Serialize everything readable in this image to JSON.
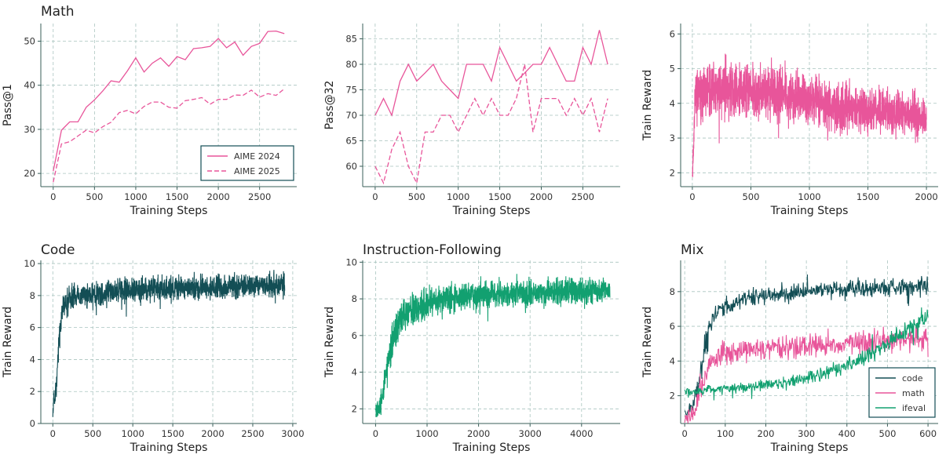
{
  "colors": {
    "pink": "#e8559a",
    "dark_teal": "#134e55",
    "green": "#12a070",
    "grid": "#a9c4bf",
    "axis": "#3a5f5a"
  },
  "chart_data": [
    {
      "type": "line",
      "title": "Math",
      "xlabel": "Training Steps",
      "ylabel": "Pass@1",
      "xlim": [
        -150,
        2950
      ],
      "ylim": [
        17,
        54
      ],
      "xticks": [
        0,
        500,
        1000,
        1500,
        2000,
        2500
      ],
      "yticks": [
        20,
        30,
        40,
        50
      ],
      "legend_position": "lower-right",
      "series": [
        {
          "name": "AIME 2024",
          "style": "solid",
          "color": "#e8559a",
          "x": [
            0,
            100,
            200,
            300,
            400,
            500,
            600,
            700,
            800,
            900,
            1000,
            1100,
            1200,
            1300,
            1400,
            1500,
            1600,
            1700,
            1800,
            1900,
            2000,
            2100,
            2200,
            2300,
            2400,
            2500,
            2600,
            2700,
            2800
          ],
          "values": [
            20.5,
            29.8,
            31.7,
            31.7,
            35.0,
            36.7,
            38.7,
            41.0,
            40.7,
            43.3,
            46.2,
            43.0,
            45.0,
            46.2,
            44.3,
            46.5,
            45.8,
            48.3,
            48.5,
            48.8,
            50.6,
            48.5,
            49.8,
            46.8,
            48.8,
            49.5,
            52.2,
            52.3,
            51.7
          ]
        },
        {
          "name": "AIME 2025",
          "style": "dashed",
          "color": "#e8559a",
          "x": [
            0,
            100,
            200,
            300,
            400,
            500,
            600,
            700,
            800,
            900,
            1000,
            1100,
            1200,
            1300,
            1400,
            1500,
            1600,
            1700,
            1800,
            1900,
            2000,
            2100,
            2200,
            2300,
            2400,
            2500,
            2600,
            2700,
            2800
          ],
          "values": [
            18.0,
            26.7,
            27.2,
            28.5,
            29.8,
            29.2,
            30.6,
            31.6,
            33.8,
            34.3,
            33.5,
            35.2,
            36.2,
            36.2,
            35.0,
            34.8,
            36.5,
            36.8,
            37.2,
            35.7,
            36.8,
            36.8,
            37.8,
            37.7,
            38.9,
            37.3,
            38.1,
            37.7,
            39.2
          ]
        }
      ]
    },
    {
      "type": "line",
      "title": "",
      "xlabel": "Training Steps",
      "ylabel": "Pass@32",
      "xlim": [
        -150,
        2950
      ],
      "ylim": [
        56,
        88
      ],
      "xticks": [
        0,
        500,
        1000,
        1500,
        2000,
        2500
      ],
      "yticks": [
        60,
        65,
        70,
        75,
        80,
        85
      ],
      "series": [
        {
          "name": "AIME 2024",
          "style": "solid",
          "color": "#e8559a",
          "x": [
            0,
            100,
            200,
            300,
            400,
            500,
            600,
            700,
            800,
            900,
            1000,
            1100,
            1200,
            1300,
            1400,
            1500,
            1600,
            1700,
            1800,
            1900,
            2000,
            2100,
            2200,
            2300,
            2400,
            2500,
            2600,
            2700,
            2800
          ],
          "values": [
            70.0,
            73.3,
            70.0,
            76.7,
            80.0,
            76.7,
            78.3,
            80.0,
            76.7,
            75.0,
            73.3,
            80.0,
            80.0,
            80.0,
            76.7,
            83.3,
            80.0,
            76.7,
            78.3,
            80.0,
            80.0,
            83.3,
            80.0,
            76.7,
            76.7,
            83.3,
            80.0,
            86.7,
            80.0
          ]
        },
        {
          "name": "AIME 2025",
          "style": "dashed",
          "color": "#e8559a",
          "x": [
            0,
            100,
            200,
            300,
            400,
            500,
            600,
            700,
            800,
            900,
            1000,
            1100,
            1200,
            1300,
            1400,
            1500,
            1600,
            1700,
            1800,
            1900,
            2000,
            2100,
            2200,
            2300,
            2400,
            2500,
            2600,
            2700,
            2800
          ],
          "values": [
            60.0,
            56.7,
            63.3,
            66.7,
            60.0,
            56.7,
            66.7,
            66.7,
            70.0,
            70.0,
            66.7,
            70.0,
            73.3,
            70.0,
            73.3,
            70.0,
            70.0,
            73.3,
            80.0,
            66.7,
            73.3,
            73.3,
            73.3,
            70.0,
            73.3,
            70.0,
            73.3,
            66.7,
            73.3
          ]
        }
      ]
    },
    {
      "type": "line",
      "title": "",
      "xlabel": "Training Steps",
      "ylabel": "Train Reward",
      "xlim": [
        -100,
        2100
      ],
      "ylim": [
        1.6,
        6.3
      ],
      "xticks": [
        0,
        500,
        1000,
        1500,
        2000
      ],
      "yticks": [
        2,
        3,
        4,
        5,
        6
      ],
      "series": [
        {
          "name": "math",
          "color": "#e8559a",
          "noisy": true,
          "x_range": [
            0,
            2000
          ],
          "points": 2000,
          "seed": 11,
          "trend": [
            [
              0,
              1.9
            ],
            [
              10,
              2.8
            ],
            [
              25,
              4.3
            ],
            [
              100,
              4.45
            ],
            [
              300,
              4.4
            ],
            [
              600,
              4.35
            ],
            [
              900,
              4.15
            ],
            [
              1200,
              3.95
            ],
            [
              1500,
              3.8
            ],
            [
              1800,
              3.7
            ],
            [
              2000,
              3.6
            ]
          ],
          "noise": [
            [
              0,
              0.2
            ],
            [
              25,
              0.5
            ],
            [
              200,
              0.55
            ],
            [
              1000,
              0.5
            ],
            [
              2000,
              0.4
            ]
          ]
        }
      ]
    },
    {
      "type": "line",
      "title": "Code",
      "xlabel": "Training Steps",
      "ylabel": "Train Reward",
      "xlim": [
        -150,
        3050
      ],
      "ylim": [
        0,
        10.2
      ],
      "xticks": [
        0,
        500,
        1000,
        1500,
        2000,
        2500,
        3000
      ],
      "yticks": [
        0,
        2,
        4,
        6,
        8,
        10
      ],
      "series": [
        {
          "name": "code",
          "color": "#134e55",
          "noisy": true,
          "x_range": [
            0,
            2900
          ],
          "points": 1500,
          "seed": 23,
          "trend": [
            [
              0,
              0.8
            ],
            [
              40,
              2.2
            ],
            [
              80,
              5.5
            ],
            [
              120,
              7.2
            ],
            [
              200,
              7.8
            ],
            [
              400,
              8.0
            ],
            [
              800,
              8.3
            ],
            [
              1200,
              8.4
            ],
            [
              1600,
              8.45
            ],
            [
              2000,
              8.5
            ],
            [
              2500,
              8.6
            ],
            [
              2900,
              8.7
            ]
          ],
          "noise": [
            [
              0,
              0.4
            ],
            [
              80,
              0.7
            ],
            [
              300,
              0.55
            ],
            [
              2900,
              0.5
            ]
          ]
        }
      ]
    },
    {
      "type": "line",
      "title": "Instruction-Following",
      "xlabel": "Training Steps",
      "ylabel": "Train Reward",
      "xlim": [
        -250,
        4750
      ],
      "ylim": [
        1.2,
        10.1
      ],
      "xticks": [
        0,
        1000,
        2000,
        3000,
        4000
      ],
      "yticks": [
        2,
        4,
        6,
        8,
        10
      ],
      "series": [
        {
          "name": "ifeval",
          "color": "#12a070",
          "noisy": true,
          "x_range": [
            0,
            4550
          ],
          "points": 1700,
          "seed": 37,
          "trend": [
            [
              0,
              1.9
            ],
            [
              100,
              2.3
            ],
            [
              200,
              3.8
            ],
            [
              300,
              5.5
            ],
            [
              450,
              6.7
            ],
            [
              700,
              7.4
            ],
            [
              1000,
              7.8
            ],
            [
              1500,
              8.05
            ],
            [
              2000,
              8.2
            ],
            [
              3000,
              8.3
            ],
            [
              4000,
              8.4
            ],
            [
              4550,
              8.45
            ]
          ],
          "noise": [
            [
              0,
              0.35
            ],
            [
              300,
              0.7
            ],
            [
              1000,
              0.55
            ],
            [
              4550,
              0.45
            ]
          ]
        }
      ]
    },
    {
      "type": "line",
      "title": "Mix",
      "xlabel": "Training Steps",
      "ylabel": "Train Reward",
      "xlim": [
        -10,
        625
      ],
      "ylim": [
        0.4,
        9.8
      ],
      "xticks": [
        0,
        100,
        200,
        300,
        400,
        500,
        600
      ],
      "yticks": [
        2,
        4,
        6,
        8
      ],
      "legend_position": "lower-right",
      "series": [
        {
          "name": "code",
          "color": "#134e55",
          "noisy": true,
          "x_range": [
            0,
            600
          ],
          "points": 600,
          "seed": 41,
          "trend": [
            [
              0,
              1.0
            ],
            [
              20,
              1.3
            ],
            [
              40,
              3.5
            ],
            [
              60,
              6.0
            ],
            [
              90,
              7.0
            ],
            [
              150,
              7.6
            ],
            [
              250,
              7.9
            ],
            [
              350,
              8.1
            ],
            [
              450,
              8.2
            ],
            [
              600,
              8.35
            ]
          ],
          "noise": [
            [
              0,
              0.2
            ],
            [
              40,
              0.55
            ],
            [
              100,
              0.4
            ],
            [
              600,
              0.35
            ]
          ]
        },
        {
          "name": "math",
          "color": "#e8559a",
          "noisy": true,
          "x_range": [
            0,
            600
          ],
          "points": 600,
          "seed": 53,
          "trend": [
            [
              0,
              0.6
            ],
            [
              20,
              0.9
            ],
            [
              40,
              2.5
            ],
            [
              60,
              3.8
            ],
            [
              90,
              4.4
            ],
            [
              150,
              4.6
            ],
            [
              250,
              4.8
            ],
            [
              350,
              4.9
            ],
            [
              450,
              5.1
            ],
            [
              600,
              5.3
            ]
          ],
          "noise": [
            [
              0,
              0.2
            ],
            [
              40,
              0.5
            ],
            [
              100,
              0.45
            ],
            [
              600,
              0.5
            ]
          ]
        },
        {
          "name": "ifeval",
          "color": "#12a070",
          "noisy": true,
          "x_range": [
            0,
            600
          ],
          "points": 600,
          "seed": 67,
          "trend": [
            [
              0,
              2.2
            ],
            [
              100,
              2.4
            ],
            [
              200,
              2.6
            ],
            [
              300,
              3.0
            ],
            [
              400,
              3.7
            ],
            [
              450,
              4.3
            ],
            [
              500,
              5.0
            ],
            [
              550,
              5.8
            ],
            [
              600,
              6.6
            ]
          ],
          "noise": [
            [
              0,
              0.2
            ],
            [
              300,
              0.25
            ],
            [
              600,
              0.4
            ]
          ]
        }
      ]
    }
  ]
}
